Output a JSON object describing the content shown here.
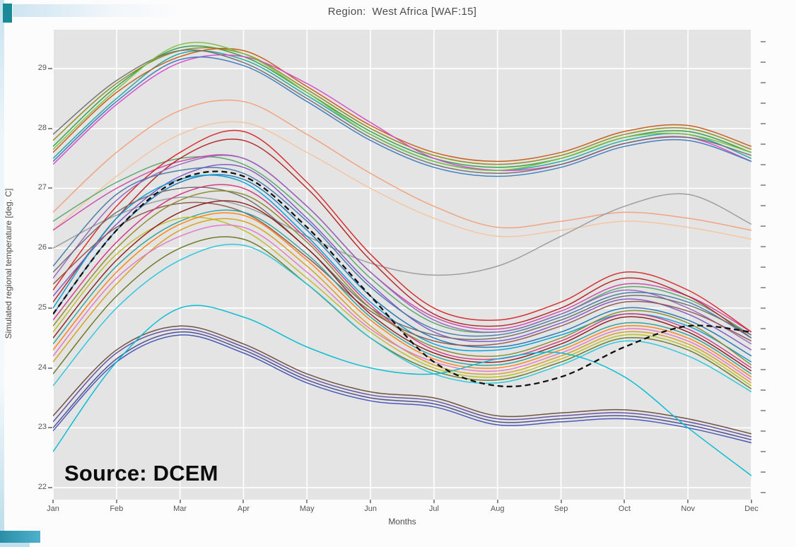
{
  "slide": {
    "accent_color": "#1a8a96"
  },
  "chart_data": {
    "type": "line",
    "title": "Region:  West Africa [WAF:15]",
    "xlabel": "Months",
    "ylabel": "Simulated regional temperature [deg. C]",
    "annotation": "Source: DCEM",
    "x_categories": [
      "Jan",
      "Feb",
      "Mar",
      "Apr",
      "May",
      "Jun",
      "Jul",
      "Aug",
      "Sep",
      "Oct",
      "Nov",
      "Dec"
    ],
    "ylim": [
      21.8,
      29.65
    ],
    "yticks": [
      22,
      23,
      24,
      25,
      26,
      27,
      28,
      29
    ],
    "grid": true,
    "legend": false,
    "plot_background": "#e4e4e4",
    "description": "Ensemble of simulated monthly regional temperature curves; dashed black line is the ensemble mean",
    "mean_series": {
      "style": "dashed",
      "color": "#111111",
      "values": [
        24.9,
        26.3,
        27.15,
        27.2,
        26.35,
        25.2,
        24.1,
        23.7,
        23.85,
        24.35,
        24.7,
        24.6
      ]
    },
    "series": [
      {
        "color": "#2e9e3e",
        "values": [
          27.7,
          28.7,
          29.35,
          29.2,
          28.6,
          27.95,
          27.5,
          27.35,
          27.5,
          27.85,
          27.95,
          27.6
        ]
      },
      {
        "color": "#1fa8a0",
        "values": [
          27.5,
          28.5,
          29.25,
          29.15,
          28.55,
          27.9,
          27.45,
          27.3,
          27.45,
          27.8,
          27.9,
          27.5
        ]
      },
      {
        "color": "#8a8a1a",
        "values": [
          27.8,
          28.75,
          29.3,
          29.25,
          28.65,
          28.0,
          27.55,
          27.4,
          27.55,
          27.9,
          28.0,
          27.65
        ]
      },
      {
        "color": "#c55a11",
        "values": [
          27.6,
          28.6,
          29.2,
          29.3,
          28.7,
          28.05,
          27.6,
          27.45,
          27.6,
          27.95,
          28.05,
          27.7
        ]
      },
      {
        "color": "#d948c8",
        "values": [
          27.4,
          28.4,
          29.1,
          29.2,
          28.75,
          28.1,
          27.5,
          27.3,
          27.4,
          27.75,
          27.85,
          27.45
        ]
      },
      {
        "color": "#6f6f6f",
        "values": [
          27.9,
          28.8,
          29.3,
          29.1,
          28.5,
          27.85,
          27.4,
          27.25,
          27.4,
          27.75,
          27.85,
          27.55
        ]
      },
      {
        "color": "#7ac143",
        "values": [
          27.65,
          28.65,
          29.4,
          29.25,
          28.6,
          27.9,
          27.45,
          27.3,
          27.5,
          27.85,
          27.9,
          27.6
        ]
      },
      {
        "color": "#3a7abd",
        "values": [
          27.45,
          28.45,
          29.15,
          29.05,
          28.45,
          27.8,
          27.35,
          27.2,
          27.35,
          27.7,
          27.8,
          27.45
        ]
      },
      {
        "color": "#f2a07a",
        "values": [
          26.6,
          27.6,
          28.3,
          28.45,
          27.9,
          27.25,
          26.7,
          26.35,
          26.45,
          26.6,
          26.5,
          26.3
        ]
      },
      {
        "color": "#f6c39e",
        "values": [
          26.3,
          27.2,
          27.9,
          28.1,
          27.6,
          27.0,
          26.5,
          26.2,
          26.3,
          26.45,
          26.35,
          26.15
        ]
      },
      {
        "color": "#9a9a9a",
        "values": [
          26.0,
          26.55,
          26.85,
          26.7,
          26.2,
          25.75,
          25.55,
          25.7,
          26.2,
          26.7,
          26.9,
          26.4
        ]
      },
      {
        "color": "#55a868",
        "values": [
          26.45,
          27.1,
          27.5,
          27.4,
          26.6,
          25.5,
          24.75,
          24.6,
          24.9,
          25.35,
          25.15,
          24.55
        ]
      },
      {
        "color": "#cc44aa",
        "values": [
          26.3,
          27.0,
          27.45,
          27.5,
          26.7,
          25.6,
          24.85,
          24.65,
          24.95,
          25.4,
          25.2,
          24.6
        ]
      },
      {
        "color": "#d62728",
        "values": [
          25.3,
          26.7,
          27.6,
          27.95,
          27.1,
          25.9,
          25.0,
          24.8,
          25.1,
          25.6,
          25.3,
          24.6
        ]
      },
      {
        "color": "#b22222",
        "values": [
          25.1,
          26.5,
          27.5,
          27.8,
          27.0,
          25.8,
          24.9,
          24.7,
          25.0,
          25.5,
          25.2,
          24.5
        ]
      },
      {
        "color": "#9467bd",
        "values": [
          25.5,
          26.8,
          27.4,
          27.5,
          26.7,
          25.6,
          24.8,
          24.6,
          24.9,
          25.3,
          25.0,
          24.4
        ]
      },
      {
        "color": "#8055c8",
        "values": [
          25.2,
          26.4,
          27.2,
          27.35,
          26.5,
          25.4,
          24.6,
          24.45,
          24.75,
          25.15,
          24.9,
          24.3
        ]
      },
      {
        "color": "#1f77b4",
        "values": [
          24.9,
          26.3,
          27.1,
          27.15,
          26.3,
          25.2,
          24.5,
          24.35,
          24.6,
          25.0,
          24.8,
          24.2
        ]
      },
      {
        "color": "#009fd6",
        "values": [
          25.0,
          26.5,
          27.15,
          27.1,
          26.2,
          25.1,
          24.4,
          24.3,
          24.55,
          24.9,
          24.7,
          24.1
        ]
      },
      {
        "color": "#4878a8",
        "values": [
          25.7,
          26.9,
          27.3,
          27.25,
          26.45,
          25.35,
          24.65,
          24.55,
          24.85,
          25.25,
          25.1,
          24.5
        ]
      },
      {
        "color": "#6d6d6d",
        "values": [
          25.6,
          26.6,
          27.0,
          26.85,
          26.0,
          25.0,
          24.55,
          24.5,
          24.8,
          25.2,
          25.05,
          24.55
        ]
      },
      {
        "color": "#8c564b",
        "values": [
          25.4,
          26.35,
          26.75,
          26.6,
          25.85,
          24.95,
          24.45,
          24.4,
          24.7,
          25.1,
          24.95,
          24.45
        ]
      },
      {
        "color": "#d33682",
        "values": [
          24.8,
          26.1,
          26.9,
          27.0,
          26.15,
          25.05,
          24.3,
          24.15,
          24.45,
          24.9,
          24.65,
          24.0
        ]
      },
      {
        "color": "#8a8a2a",
        "values": [
          24.7,
          26.0,
          26.8,
          26.9,
          26.1,
          25.0,
          24.35,
          24.2,
          24.5,
          24.95,
          24.75,
          24.05
        ]
      },
      {
        "color": "#2aa198",
        "values": [
          24.4,
          25.7,
          26.45,
          26.6,
          25.9,
          24.85,
          24.2,
          24.05,
          24.35,
          24.75,
          24.55,
          23.9
        ]
      },
      {
        "color": "#bcbd22",
        "values": [
          24.6,
          25.9,
          26.5,
          26.3,
          25.5,
          24.6,
          24.0,
          23.85,
          24.15,
          24.55,
          24.35,
          23.7
        ]
      },
      {
        "color": "#ff7f0e",
        "values": [
          24.3,
          25.6,
          26.4,
          26.55,
          25.8,
          24.8,
          24.15,
          24.0,
          24.3,
          24.7,
          24.5,
          23.85
        ]
      },
      {
        "color": "#d4a017",
        "values": [
          24.1,
          25.4,
          26.3,
          26.45,
          25.7,
          24.7,
          24.05,
          23.9,
          24.2,
          24.6,
          24.4,
          23.75
        ]
      },
      {
        "color": "#8b1a1a",
        "values": [
          24.5,
          25.8,
          26.6,
          26.75,
          26.0,
          24.9,
          24.25,
          24.1,
          24.4,
          24.85,
          24.6,
          23.95
        ]
      },
      {
        "color": "#e377c2",
        "values": [
          24.2,
          25.5,
          26.2,
          26.35,
          25.6,
          24.65,
          24.1,
          23.95,
          24.25,
          24.65,
          24.45,
          23.8
        ]
      },
      {
        "color": "#667722",
        "values": [
          23.9,
          25.2,
          26.0,
          26.15,
          25.4,
          24.5,
          23.95,
          23.8,
          24.1,
          24.5,
          24.3,
          23.65
        ]
      },
      {
        "color": "#26c6da",
        "values": [
          23.7,
          25.0,
          25.8,
          26.05,
          25.4,
          24.5,
          23.9,
          23.75,
          24.05,
          24.45,
          24.2,
          23.6
        ]
      },
      {
        "color": "#5b4ea0",
        "values": [
          23.1,
          24.25,
          24.65,
          24.35,
          23.85,
          23.55,
          23.45,
          23.15,
          23.2,
          23.25,
          23.1,
          22.85
        ]
      },
      {
        "color": "#4a4a8a",
        "values": [
          23.0,
          24.15,
          24.6,
          24.3,
          23.8,
          23.5,
          23.4,
          23.1,
          23.15,
          23.2,
          23.05,
          22.8
        ]
      },
      {
        "color": "#6b4a3a",
        "values": [
          23.2,
          24.3,
          24.7,
          24.4,
          23.9,
          23.6,
          23.5,
          23.2,
          23.25,
          23.3,
          23.15,
          22.9
        ]
      },
      {
        "color": "#3f51b5",
        "values": [
          22.95,
          24.1,
          24.55,
          24.25,
          23.75,
          23.45,
          23.35,
          23.05,
          23.1,
          23.15,
          23.0,
          22.75
        ]
      },
      {
        "color": "#00bcd4",
        "values": [
          22.6,
          24.1,
          25.0,
          24.85,
          24.35,
          24.0,
          23.9,
          24.15,
          24.25,
          23.85,
          23.0,
          22.2
        ]
      }
    ]
  }
}
